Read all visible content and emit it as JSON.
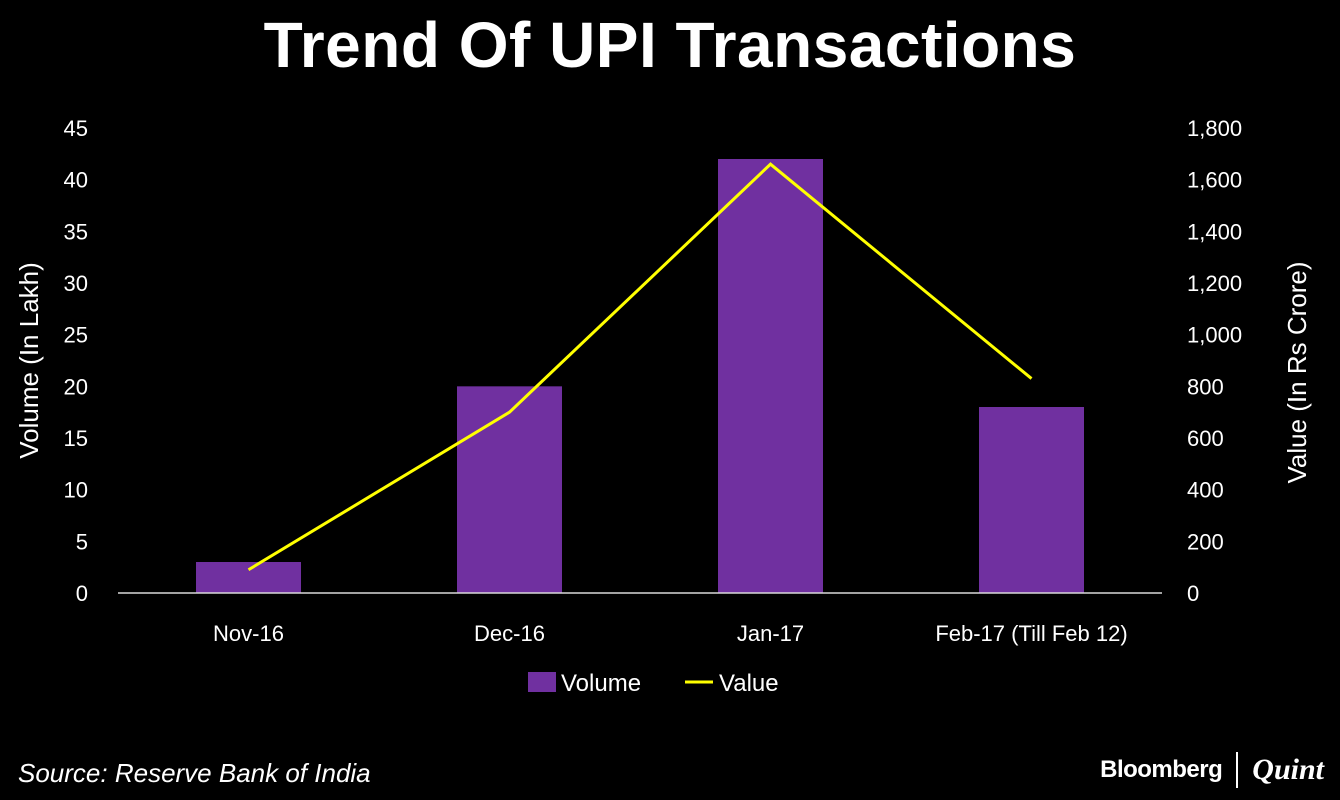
{
  "chart_data": {
    "type": "bar",
    "title": "Trend Of UPI Transactions",
    "categories": [
      "Nov-16",
      "Dec-16",
      "Jan-17",
      "Feb-17 (Till Feb 12)"
    ],
    "series": [
      {
        "name": "Volume",
        "type": "bar",
        "axis": "left",
        "color": "#7030A0",
        "values": [
          3,
          20,
          42,
          18
        ]
      },
      {
        "name": "Value",
        "type": "line",
        "axis": "right",
        "color": "#FFFF00",
        "values": [
          90,
          700,
          1660,
          830
        ]
      }
    ],
    "ylabel": "Volume (In Lakh)",
    "y2label": "Value (In Rs Crore)",
    "ylim": [
      0,
      45
    ],
    "y2lim": [
      0,
      1800
    ],
    "yticks": [
      "0",
      "5",
      "10",
      "15",
      "20",
      "25",
      "30",
      "35",
      "40",
      "45"
    ],
    "y2ticks": [
      "0",
      "200",
      "400",
      "600",
      "800",
      "1,000",
      "1,200",
      "1,400",
      "1,600",
      "1,800"
    ],
    "legend": {
      "position": "bottom",
      "entries": [
        "Volume",
        "Value"
      ]
    },
    "grid": false
  },
  "footer": {
    "source": "Source: Reserve Bank of India",
    "brand_left": "Bloomberg",
    "brand_right": "Quint"
  }
}
